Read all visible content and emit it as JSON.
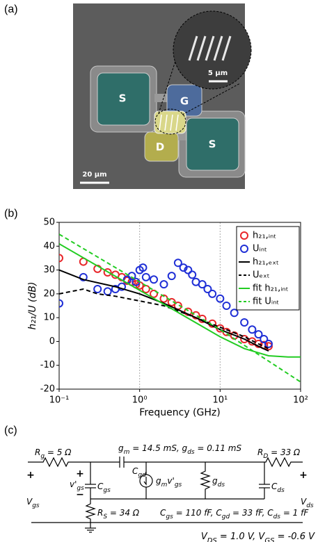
{
  "panel_labels": [
    "(a)",
    "(b)",
    "(c)"
  ],
  "image": {
    "labels": [
      "S",
      "G",
      "D",
      "S"
    ],
    "inset_scale": "5 µm",
    "scale": "20 µm"
  },
  "chart_data": {
    "type": "scatter",
    "xlabel": "Frequency (GHz)",
    "ylabel": "h₂₁/U (dB)",
    "xscale": "log",
    "xlim": [
      0.1,
      100
    ],
    "ylim": [
      -20,
      50
    ],
    "xticks": [
      {
        "value": 0.1,
        "label": "10⁻¹"
      },
      {
        "value": 1,
        "label": "10⁰"
      },
      {
        "value": 10,
        "label": "10¹"
      },
      {
        "value": 100,
        "label": "10²"
      }
    ],
    "yticks": [
      -20,
      -10,
      0,
      10,
      20,
      30,
      40,
      50
    ],
    "grid": true,
    "legend": "upper right",
    "series": [
      {
        "name": "h₂₁,ᵢₙₜ",
        "style": "circle",
        "color": "#e8262a",
        "x": [
          0.1,
          0.2,
          0.3,
          0.4,
          0.5,
          0.6,
          0.7,
          0.8,
          0.9,
          1,
          1.2,
          1.5,
          2,
          2.5,
          3,
          4,
          5,
          6,
          8,
          10,
          12,
          15,
          20,
          25,
          30,
          35,
          40
        ],
        "values": [
          35,
          33.5,
          30.5,
          29,
          28,
          27,
          25.5,
          25,
          24,
          23.5,
          22,
          20,
          18,
          16.5,
          15,
          12.5,
          11,
          9.5,
          7.5,
          5.5,
          4,
          2.5,
          1,
          0,
          -1,
          -1.5,
          -2
        ]
      },
      {
        "name": "Uᵢₙₜ",
        "style": "circle",
        "color": "#1f2fd6",
        "x": [
          0.1,
          0.2,
          0.3,
          0.4,
          0.5,
          0.6,
          0.7,
          0.8,
          0.9,
          1,
          1.1,
          1.2,
          1.5,
          2,
          2.5,
          3,
          3.5,
          4,
          4.5,
          5,
          6,
          7,
          8,
          10,
          12,
          15,
          20,
          25,
          30,
          35,
          40
        ],
        "values": [
          16,
          27,
          22,
          21,
          22,
          23,
          26,
          27.5,
          25,
          30,
          31,
          27,
          26,
          24,
          27.5,
          33,
          31,
          30,
          28,
          25,
          24,
          22,
          20,
          18,
          15,
          12,
          8,
          5,
          3,
          1,
          -1
        ]
      },
      {
        "name": "h₂₁,ₑₓₜ",
        "style": "solid",
        "color": "#000000",
        "x": [
          0.1,
          0.2,
          0.5,
          1,
          2,
          5,
          10,
          20,
          30,
          40
        ],
        "values": [
          30,
          26,
          23,
          20,
          16,
          10,
          5,
          1,
          -2,
          -4
        ]
      },
      {
        "name": "Uₑₓₜ",
        "style": "dashed",
        "color": "#000000",
        "x": [
          0.1,
          0.2,
          0.3,
          0.5,
          1,
          2,
          5,
          10,
          20,
          30,
          40
        ],
        "values": [
          20,
          22,
          20,
          19,
          17,
          15,
          10,
          6,
          2,
          -1,
          -3
        ]
      },
      {
        "name": "fit h₂₁,ᵢₙₜ",
        "style": "solid",
        "color": "#22cc22",
        "x": [
          0.1,
          1,
          10,
          20,
          40,
          70,
          100
        ],
        "values": [
          41,
          21.5,
          2,
          -3,
          -6,
          -6.5,
          -6.5
        ]
      },
      {
        "name": "fit Uᵢₙₜ",
        "style": "dashed",
        "color": "#22cc22",
        "x": [
          0.1,
          1,
          10,
          100
        ],
        "values": [
          45,
          25,
          5,
          -17
        ]
      }
    ]
  },
  "circuit": {
    "rg": [
      "R",
      "g",
      " = 5 Ω"
    ],
    "gm": [
      "g",
      "m",
      " = 14.5 mS, g",
      "ds",
      " = 0.11 mS"
    ],
    "rd": [
      "R",
      "D",
      " = 33 Ω"
    ],
    "cgd": [
      "C",
      "gd"
    ],
    "vgs_int": [
      "v'",
      "gs"
    ],
    "cgs": [
      "C",
      "gs"
    ],
    "source": [
      "g",
      "m",
      "v'",
      "gs"
    ],
    "gds": [
      "g",
      "ds"
    ],
    "cds": [
      "C",
      "ds"
    ],
    "vgs": [
      "V",
      "gs"
    ],
    "vds": [
      "V",
      "ds"
    ],
    "rs": [
      "R",
      "S",
      " = 34 Ω"
    ],
    "caps": [
      "C",
      "gs",
      " = 110 fF, C",
      "gd",
      " = 33 fF, C",
      "ds",
      " = 1 fF"
    ],
    "bias": [
      "V",
      "DS",
      " = 1.0 V, V",
      "GS",
      " = -0.6 V"
    ],
    "plus": "+",
    "minus": "−"
  }
}
